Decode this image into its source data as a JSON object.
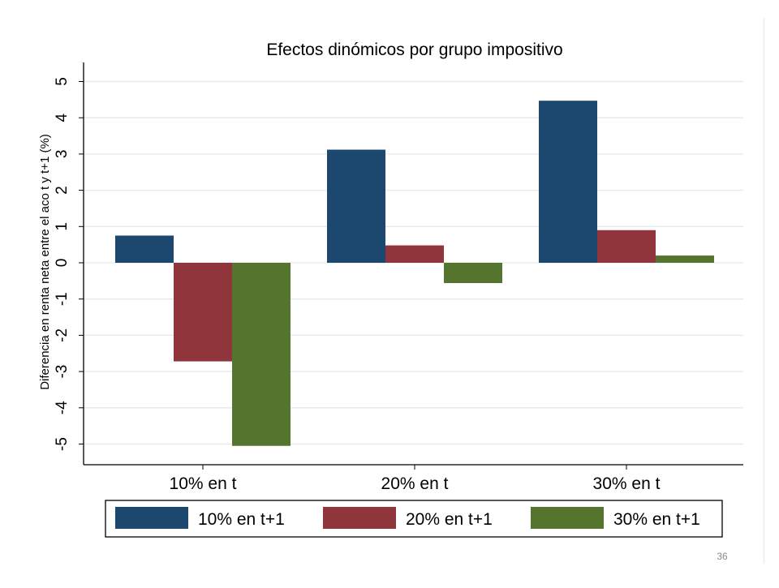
{
  "page": {
    "number": "36"
  },
  "colors": {
    "series": [
      "#1c476e",
      "#90353b",
      "#55752f"
    ],
    "grid": "#e2eaea",
    "axis": "#000000",
    "text": "#000000"
  },
  "chart_data": {
    "type": "bar",
    "title": "Efectos dinómicos por grupo impositivo",
    "ylabel": "Diferencia en renta neta entre el aco t y t+1 (%)",
    "xlabel": "",
    "categories": [
      "10% en t",
      "20% en t",
      "30% en t"
    ],
    "yticks": [
      5,
      4,
      3,
      2,
      1,
      0,
      -1,
      -2,
      -3,
      -4,
      -5
    ],
    "ylim": [
      -5.55,
      5.55
    ],
    "grid": true,
    "legend_position": "bottom",
    "series": [
      {
        "name": "10% en t+1",
        "values": [
          0.75,
          3.12,
          4.47
        ]
      },
      {
        "name": "20% en t+1",
        "values": [
          -2.72,
          0.48,
          0.9
        ]
      },
      {
        "name": "30% en t+1",
        "values": [
          -5.05,
          -0.56,
          0.2
        ]
      }
    ]
  }
}
